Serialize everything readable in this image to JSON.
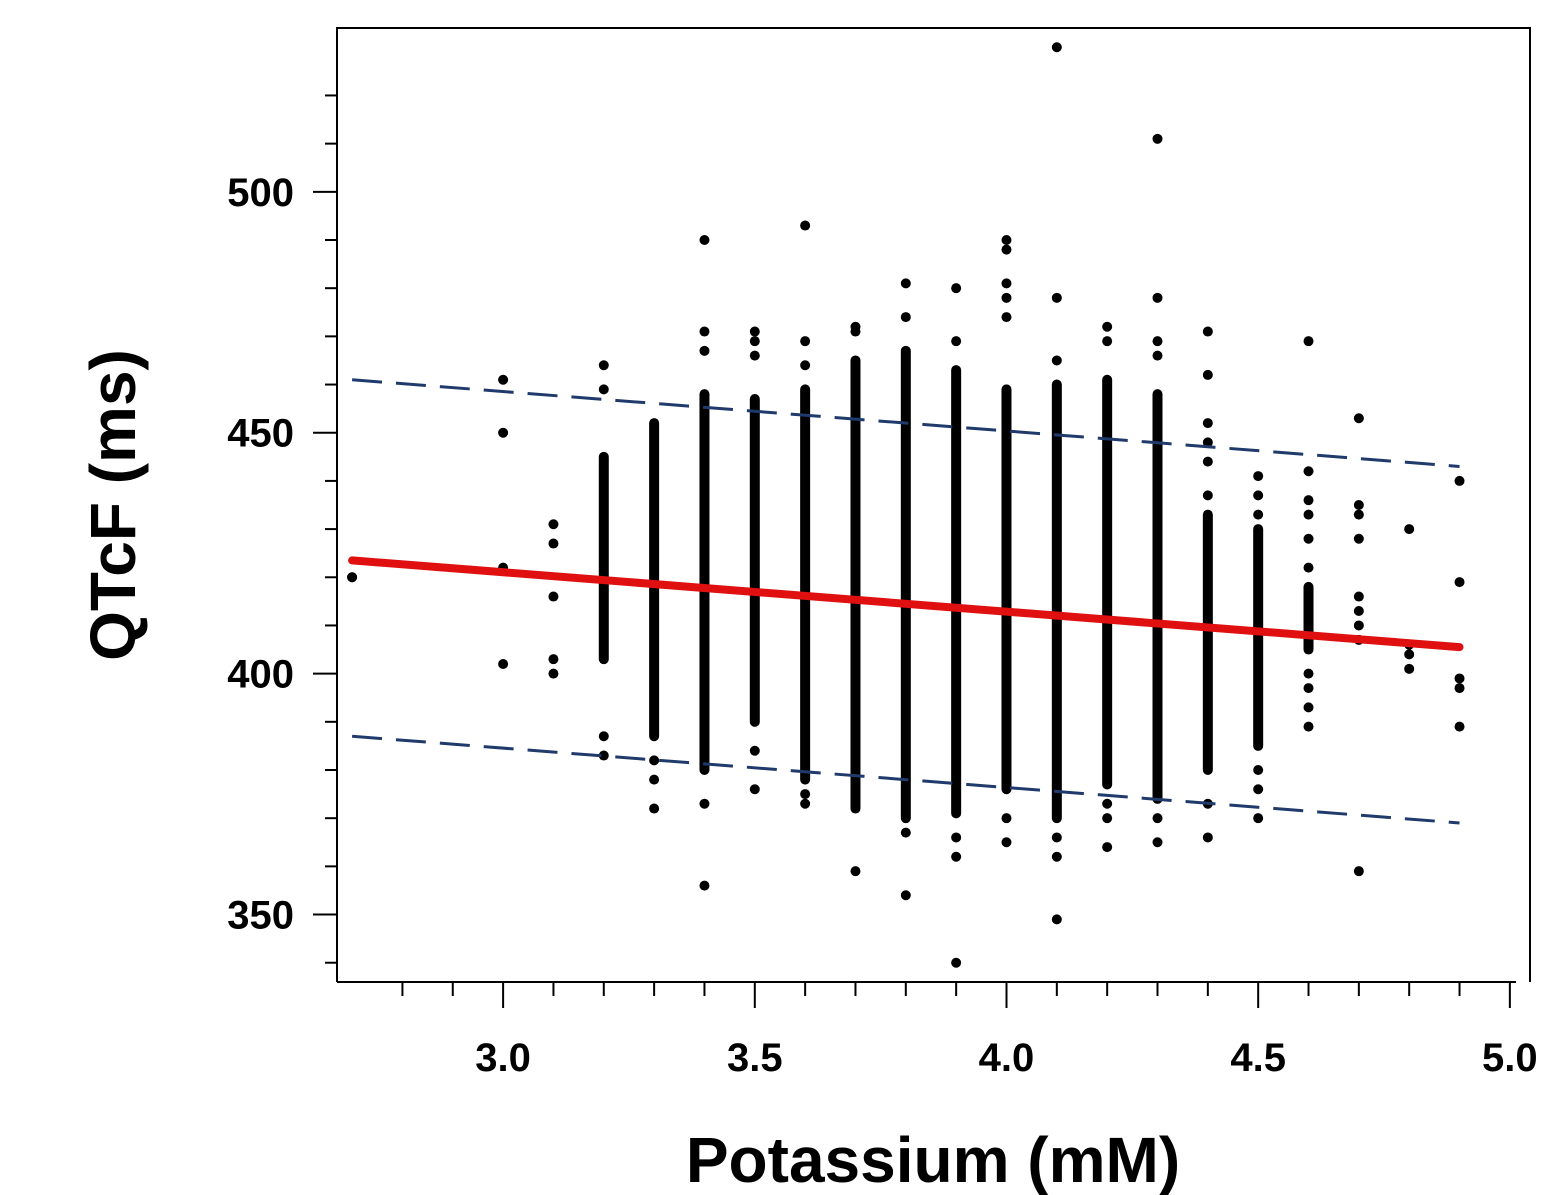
{
  "chart_data": {
    "type": "scatter",
    "title": "",
    "xlabel": "Potassium (mM)",
    "ylabel": "QTcF (ms)",
    "xlim": [
      2.67,
      5.04
    ],
    "ylim": [
      336,
      534
    ],
    "grid": false,
    "legend": "none",
    "x_ticks": [
      "3.0",
      "3.5",
      "4.0",
      "4.5",
      "5.0"
    ],
    "x_tick_values": [
      3.0,
      3.5,
      4.0,
      4.5,
      5.0
    ],
    "x_minor_ticks": [
      2.8,
      2.9,
      3.1,
      3.2,
      3.3,
      3.4,
      3.6,
      3.7,
      3.8,
      3.9,
      4.1,
      4.2,
      4.3,
      4.4,
      4.6,
      4.7,
      4.8,
      4.9
    ],
    "y_ticks": [
      "350",
      "400",
      "450",
      "500"
    ],
    "y_tick_values": [
      350,
      400,
      450,
      500
    ],
    "y_minor_ticks": [
      340,
      360,
      370,
      380,
      390,
      410,
      420,
      430,
      440,
      460,
      470,
      480,
      490,
      510,
      520
    ],
    "colors": {
      "points": "#000000",
      "fit": "#e01010",
      "bounds": "#1f3a6b"
    },
    "fit_line": {
      "x": [
        2.7,
        4.9
      ],
      "y": [
        423.5,
        405.5
      ]
    },
    "upper_bound": {
      "x": [
        2.7,
        4.9
      ],
      "y": [
        461,
        443
      ]
    },
    "lower_bound": {
      "x": [
        2.7,
        4.9
      ],
      "y": [
        387,
        369
      ]
    },
    "columns": [
      {
        "x": 2.7,
        "min": 420,
        "max": 420,
        "points": [
          420
        ]
      },
      {
        "x": 3.0,
        "min": null,
        "max": null,
        "points": [
          461,
          450,
          422,
          402
        ]
      },
      {
        "x": 3.1,
        "min": null,
        "max": null,
        "points": [
          431,
          427,
          416,
          403,
          400
        ]
      },
      {
        "x": 3.2,
        "min": 403,
        "max": 445,
        "points": [
          464,
          459,
          387,
          383
        ]
      },
      {
        "x": 3.3,
        "min": 387,
        "max": 452,
        "points": [
          382,
          378,
          372
        ]
      },
      {
        "x": 3.4,
        "min": 380,
        "max": 458,
        "points": [
          471,
          467,
          490,
          373,
          356
        ]
      },
      {
        "x": 3.5,
        "min": 390,
        "max": 457,
        "points": [
          471,
          469,
          466,
          384,
          376
        ]
      },
      {
        "x": 3.6,
        "min": 378,
        "max": 459,
        "points": [
          469,
          464,
          493,
          375,
          373
        ]
      },
      {
        "x": 3.7,
        "min": 372,
        "max": 465,
        "points": [
          472,
          471,
          359
        ]
      },
      {
        "x": 3.8,
        "min": 370,
        "max": 467,
        "points": [
          481,
          474,
          367,
          354
        ]
      },
      {
        "x": 3.9,
        "min": 371,
        "max": 463,
        "points": [
          480,
          469,
          366,
          362,
          340
        ]
      },
      {
        "x": 4.0,
        "min": 376,
        "max": 459,
        "points": [
          490,
          488,
          481,
          478,
          474,
          370,
          365
        ]
      },
      {
        "x": 4.1,
        "min": 370,
        "max": 460,
        "points": [
          530,
          478,
          465,
          366,
          362,
          349
        ]
      },
      {
        "x": 4.2,
        "min": 377,
        "max": 461,
        "points": [
          472,
          469,
          373,
          370,
          364
        ]
      },
      {
        "x": 4.3,
        "min": 374,
        "max": 458,
        "points": [
          511,
          478,
          469,
          466,
          370,
          365
        ]
      },
      {
        "x": 4.4,
        "min": 380,
        "max": 433,
        "points": [
          471,
          462,
          452,
          448,
          444,
          437,
          373,
          366
        ]
      },
      {
        "x": 4.5,
        "min": 385,
        "max": 430,
        "points": [
          441,
          437,
          433,
          380,
          376,
          370
        ]
      },
      {
        "x": 4.6,
        "min": 405,
        "max": 418,
        "points": [
          469,
          442,
          436,
          433,
          428,
          422,
          400,
          397,
          393,
          389
        ]
      },
      {
        "x": 4.7,
        "min": null,
        "max": null,
        "points": [
          453,
          435,
          433,
          428,
          416,
          413,
          410,
          407,
          359
        ]
      },
      {
        "x": 4.8,
        "min": null,
        "max": null,
        "points": [
          430,
          406,
          404,
          401
        ]
      },
      {
        "x": 4.9,
        "min": null,
        "max": null,
        "points": [
          440,
          419,
          399,
          397,
          389
        ]
      }
    ]
  }
}
